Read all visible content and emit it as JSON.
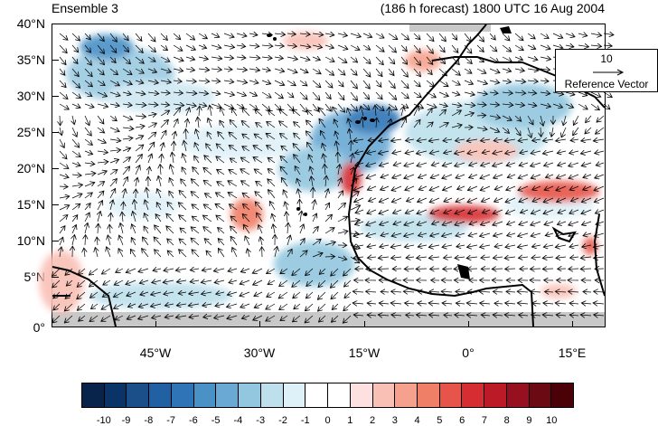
{
  "header": {
    "left_title": "Ensemble 3",
    "right_title": "(186 h forecast) 1800 UTC 16 Aug 2004"
  },
  "map": {
    "projection": "cylindrical-equidistant",
    "lon_range": [
      -60,
      20
    ],
    "lat_range": [
      0,
      40
    ],
    "lat_labels": [
      "40°N",
      "35°N",
      "30°N",
      "25°N",
      "20°N",
      "15°N",
      "10°N",
      "5°N",
      "0°"
    ],
    "lon_labels": [
      "45°W",
      "30°W",
      "15°W",
      "0°",
      "15°E"
    ],
    "reference_vector": {
      "magnitude": "10",
      "label": "Reference Vector"
    },
    "coastline_color": "#000000",
    "missing_data_color": "#c8c8c8"
  },
  "colorbar": {
    "labels": [
      "-10",
      "-9",
      "-8",
      "-7",
      "-6",
      "-5",
      "-4",
      "-3",
      "-2",
      "-1",
      "0",
      "1",
      "2",
      "3",
      "4",
      "5",
      "6",
      "7",
      "8",
      "9",
      "10"
    ],
    "colors": [
      "#08244a",
      "#0a3468",
      "#1a4f8a",
      "#2161a3",
      "#2f74b6",
      "#4a91c6",
      "#6aa9d4",
      "#93c7df",
      "#bde0ec",
      "#dff1f8",
      "#ffffff",
      "#ffffff",
      "#fde0e0",
      "#f9c0b5",
      "#f6a18d",
      "#f07f68",
      "#e7544a",
      "#d62d33",
      "#bd1a27",
      "#961020",
      "#6b0a12",
      "#4a0208"
    ]
  }
}
